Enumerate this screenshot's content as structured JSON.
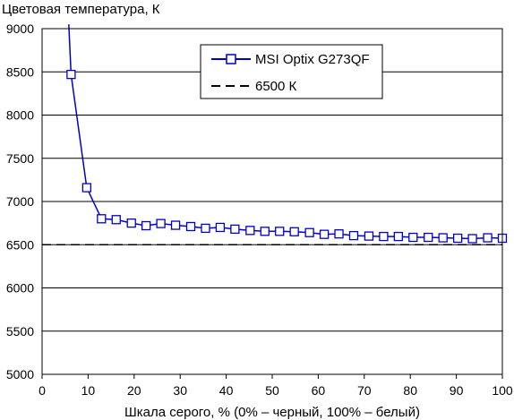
{
  "chart_data": {
    "type": "line",
    "title": "Цветовая температура, К",
    "xlabel": "Шкала серого, % (0% – черный, 100% – белый)",
    "ylabel": "",
    "xlim": [
      0,
      100
    ],
    "ylim": [
      5000,
      9000
    ],
    "x_ticks": [
      "0",
      "10",
      "20",
      "30",
      "40",
      "50",
      "60",
      "70",
      "80",
      "90",
      "100"
    ],
    "y_ticks": [
      "5000",
      "5500",
      "6000",
      "6500",
      "7000",
      "7500",
      "8000",
      "8500",
      "9000"
    ],
    "grid": "horizontal",
    "legend_position": "top-center",
    "series": [
      {
        "name": "MSI Optix G273QF",
        "color": "#0000cc",
        "marker": "square",
        "x": [
          6.3,
          9.7,
          12.9,
          16.1,
          19.4,
          22.6,
          25.8,
          29.0,
          32.3,
          35.5,
          38.7,
          41.9,
          45.2,
          48.4,
          51.6,
          54.8,
          58.1,
          61.3,
          64.5,
          67.7,
          71.0,
          74.2,
          77.4,
          80.6,
          83.9,
          87.1,
          90.3,
          93.5,
          96.8,
          100
        ],
        "y": [
          8470,
          7160,
          6800,
          6790,
          6750,
          6720,
          6745,
          6725,
          6710,
          6690,
          6700,
          6680,
          6665,
          6655,
          6655,
          6650,
          6640,
          6620,
          6625,
          6605,
          6600,
          6595,
          6595,
          6585,
          6585,
          6580,
          6575,
          6570,
          6580,
          6575
        ],
        "offscale_start": {
          "x": 5.8,
          "y": 9050
        }
      },
      {
        "name": "6500 К",
        "color": "#000000",
        "style": "dashed",
        "x": [
          0,
          100
        ],
        "y": [
          6500,
          6500
        ]
      }
    ]
  }
}
